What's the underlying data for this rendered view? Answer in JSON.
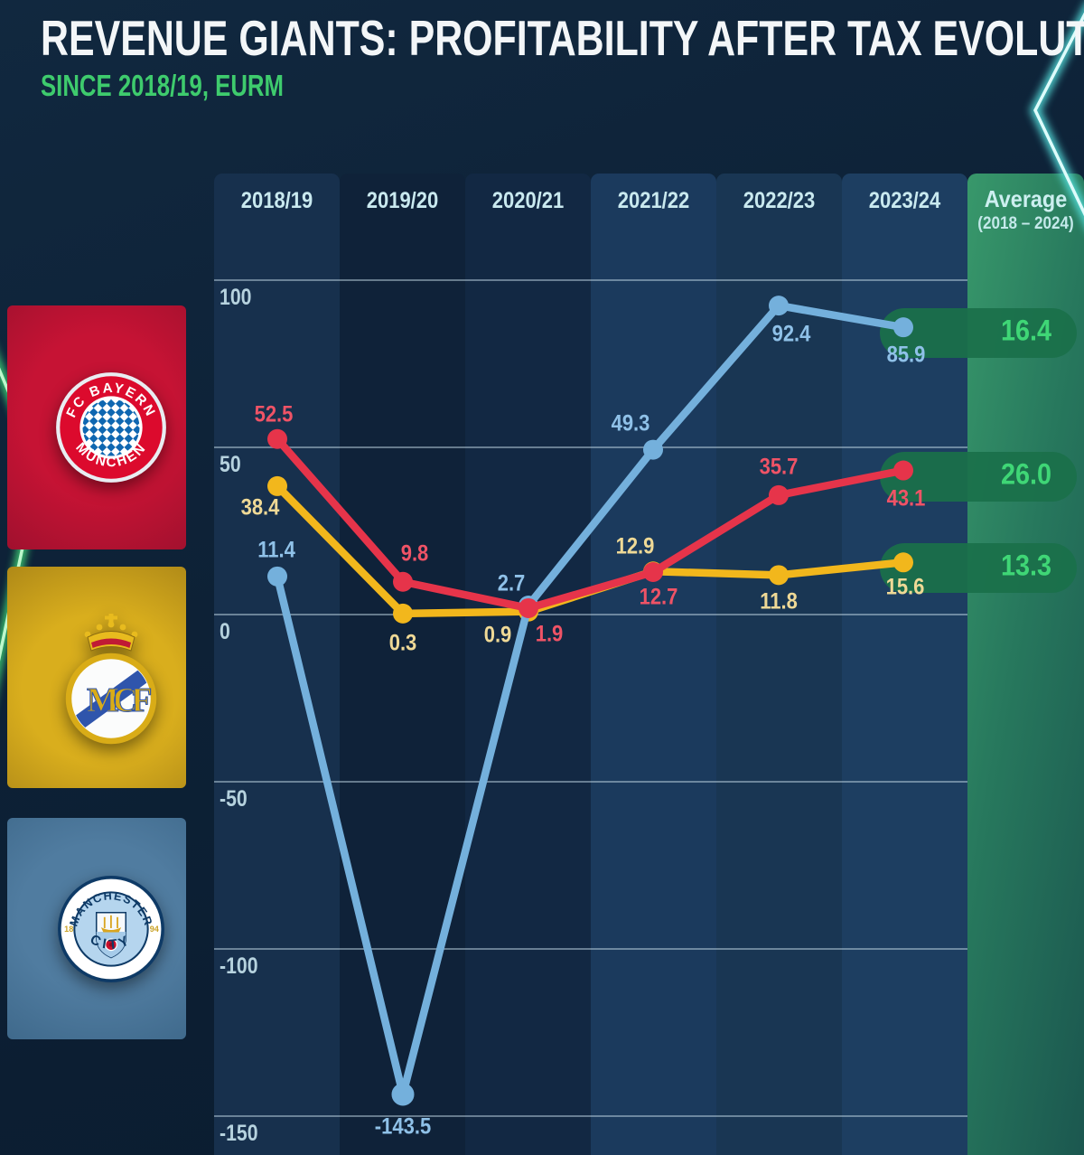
{
  "header": {
    "title": "REVENUE GIANTS: PROFITABILITY AFTER TAX EVOLUTION",
    "subtitle": "SINCE 2018/19, EURM"
  },
  "columns": [
    "2018/19",
    "2019/20",
    "2020/21",
    "2021/22",
    "2022/23",
    "2023/24"
  ],
  "average_header": {
    "line1": "Average",
    "line2": "(2018 – 2024)"
  },
  "y_axis": [
    "100",
    "50",
    "0",
    "-50",
    "-100",
    "-150"
  ],
  "badges": {
    "bayern": {
      "ring_top": "FC BAYERN",
      "ring_bottom": "MÜNCHEN"
    },
    "real": {
      "monogram": "MCF"
    },
    "city": {
      "ring_top": "MANCHESTER",
      "ring_bottom": "CITY",
      "year_left": "18",
      "year_right": "94"
    }
  },
  "colors": {
    "background": "#0d2136",
    "subtitle_green": "#3ecb6d",
    "average_value_green": "#3fd676",
    "pill_green": "#1a704a",
    "grid": "#c6dee9",
    "column_shades": [
      "#17304d",
      "#0f2239",
      "#122843",
      "#1b3a5d",
      "#193653",
      "#1d3e61"
    ],
    "average_column_gradient": [
      "#38986b",
      "#1b574f"
    ],
    "bayern_red": "#e6344a",
    "real_yellow": "#f2b71c",
    "city_blue": "#74b0dc"
  },
  "chart_data": {
    "type": "line",
    "title": "REVENUE GIANTS: PROFITABILITY AFTER TAX EVOLUTION",
    "subtitle": "SINCE 2018/19, EURM",
    "unit": "EURm",
    "categories": [
      "2018/19",
      "2019/20",
      "2020/21",
      "2021/22",
      "2022/23",
      "2023/24"
    ],
    "series": [
      {
        "name": "FC Bayern München",
        "color": "#e6344a",
        "label_color": "#ef5366",
        "values": [
          52.5,
          9.8,
          1.9,
          12.7,
          35.7,
          43.1
        ],
        "average": "26.0"
      },
      {
        "name": "Real Madrid",
        "color": "#f2b71c",
        "label_color": "#efd996",
        "values": [
          38.4,
          0.3,
          0.9,
          12.9,
          11.8,
          15.6
        ],
        "average": "13.3"
      },
      {
        "name": "Manchester City",
        "color": "#74b0dc",
        "label_color": "#8fc1e8",
        "values": [
          11.4,
          -143.5,
          2.7,
          49.3,
          92.4,
          85.9
        ],
        "average": "16.4"
      }
    ],
    "yticks": [
      100,
      50,
      0,
      -50,
      -100,
      -150
    ],
    "ylim": [
      -160,
      110
    ],
    "grid": true,
    "legend_position": "left-club-badges"
  }
}
